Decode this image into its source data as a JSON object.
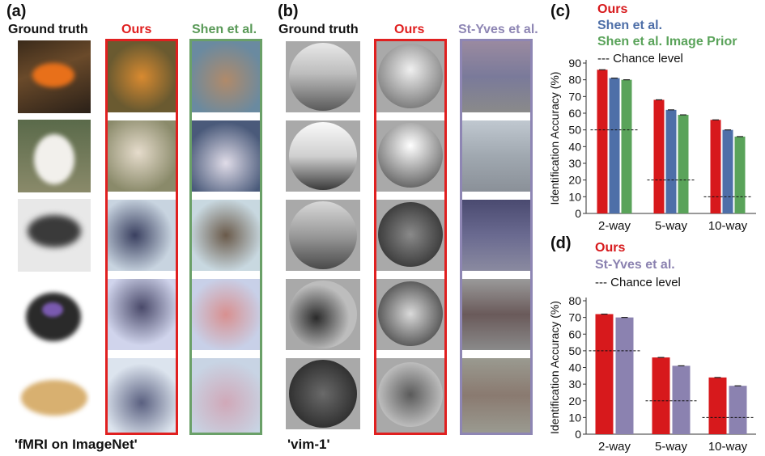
{
  "panel_a": {
    "label": "(a)",
    "col_ground_truth": "Ground truth",
    "col_ours": "Ours",
    "col_shen": "Shen et al.",
    "footer": "'fMRI on ImageNet'"
  },
  "panel_b": {
    "label": "(b)",
    "col_ground_truth": "Ground truth",
    "col_ours": "Ours",
    "col_styves": "St-Yves et al.",
    "footer": "'vim-1'"
  },
  "colors": {
    "ours": "#d7191c",
    "shen": "#4e6fa8",
    "shen_prior": "#5aa35a",
    "styves": "#8b82b0",
    "frame_ours": "#e02020",
    "frame_shen": "#6aa068",
    "frame_styves": "#8e86b4"
  },
  "chart_data": [
    {
      "panel": "(c)",
      "type": "bar",
      "ylabel": "Identification Accuracy (%)",
      "xlabel": "",
      "categories": [
        "2-way",
        "5-way",
        "10-way"
      ],
      "ylim": [
        0,
        90
      ],
      "yticks": [
        0,
        10,
        20,
        30,
        40,
        50,
        60,
        70,
        80,
        90
      ],
      "series": [
        {
          "name": "Ours",
          "color": "#d7191c",
          "values": [
            86,
            68,
            56
          ]
        },
        {
          "name": "Shen et al.",
          "color": "#4e6fa8",
          "values": [
            81,
            62,
            50
          ]
        },
        {
          "name": "Shen et al. Image Prior",
          "color": "#5aa35a",
          "values": [
            80,
            59,
            46
          ]
        }
      ],
      "chance": {
        "name": "Chance level",
        "values": [
          50,
          20,
          10
        ]
      },
      "legend_position": "top"
    },
    {
      "panel": "(d)",
      "type": "bar",
      "ylabel": "Identification Accuracy (%)",
      "xlabel": "",
      "categories": [
        "2-way",
        "5-way",
        "10-way"
      ],
      "ylim": [
        0,
        80
      ],
      "yticks": [
        0,
        10,
        20,
        30,
        40,
        50,
        60,
        70,
        80
      ],
      "series": [
        {
          "name": "Ours",
          "color": "#d7191c",
          "values": [
            72,
            46,
            34
          ]
        },
        {
          "name": "St-Yves et al.",
          "color": "#8b82b0",
          "values": [
            70,
            41,
            29
          ]
        }
      ],
      "chance": {
        "name": "Chance level",
        "values": [
          50,
          20,
          10
        ]
      },
      "legend_position": "top"
    }
  ]
}
